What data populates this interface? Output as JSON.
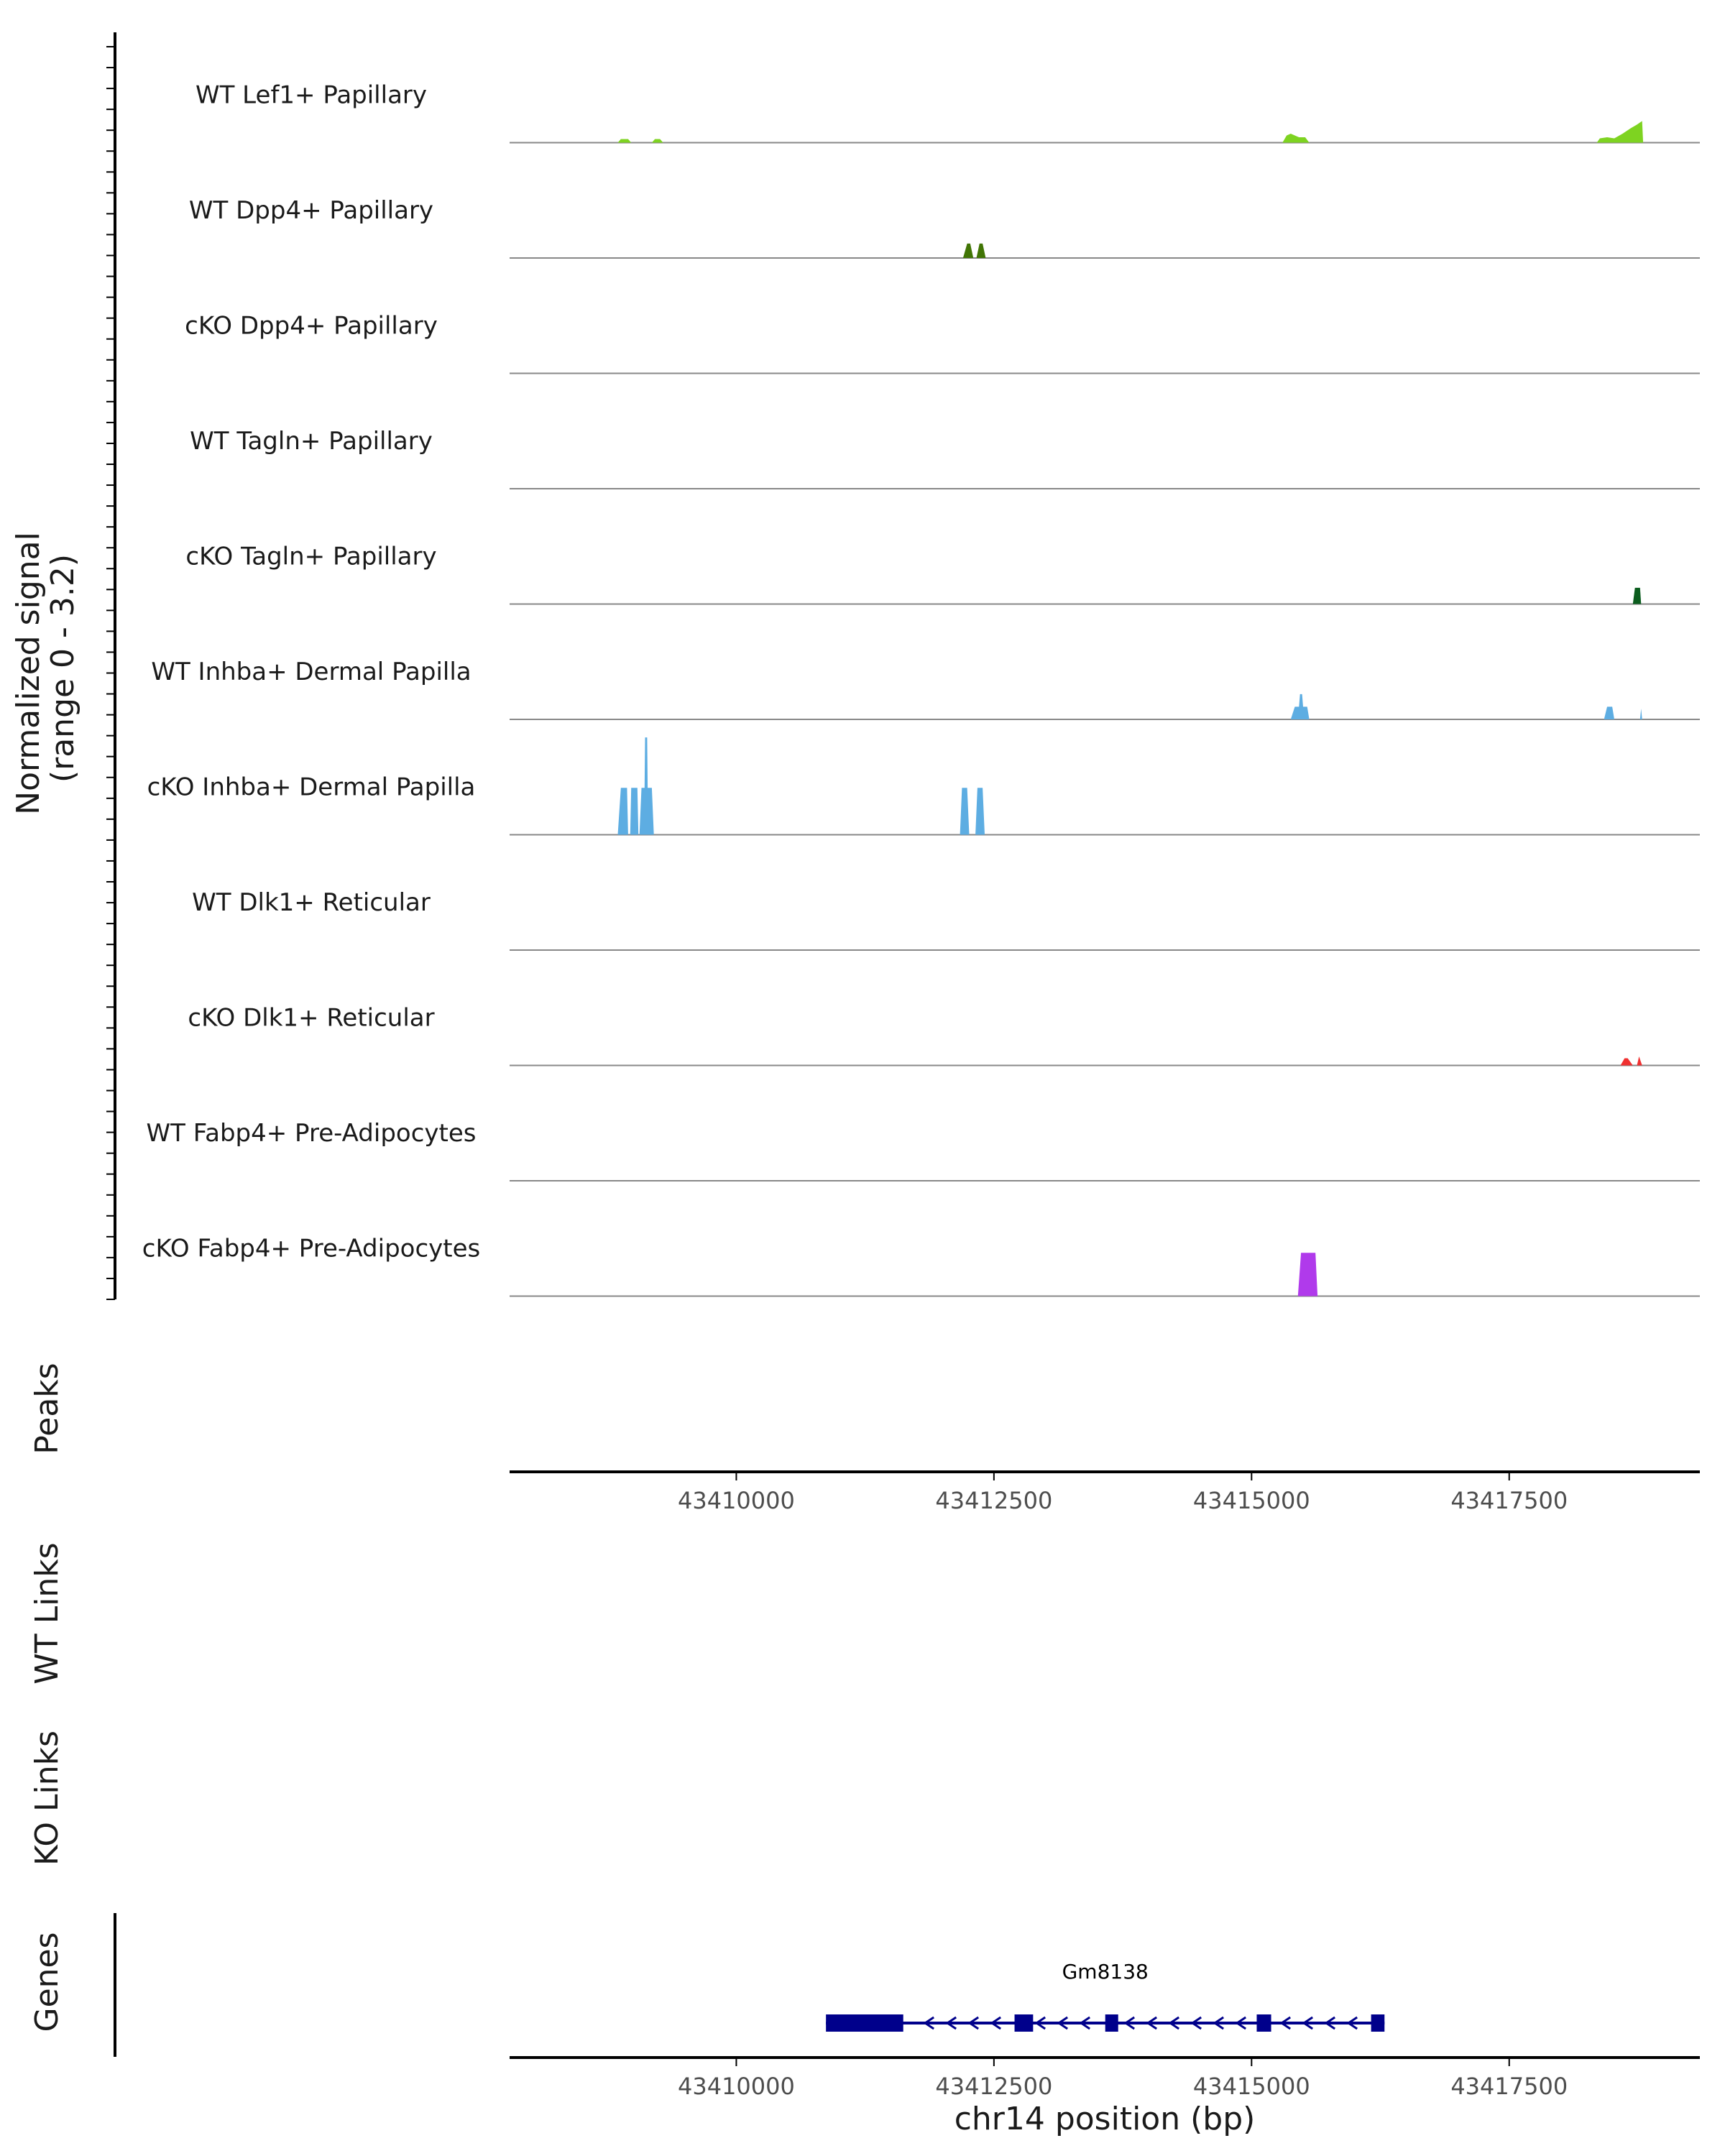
{
  "chart_data": {
    "type": "area",
    "title": "",
    "xlabel": "chr14 position (bp)",
    "ylabel": "Normalized signal\n(range 0 - 3.2)",
    "ylabel_lines": [
      "Normalized signal",
      "(range 0 - 3.2)"
    ],
    "xlim": [
      43407800,
      43419350
    ],
    "ylim": [
      0,
      3.2
    ],
    "x_ticks": [
      43410000,
      43412500,
      43415000,
      43417500
    ],
    "x_tick_labels": [
      "43410000",
      "43412500",
      "43415000",
      "43417500"
    ],
    "series": [
      {
        "name": "WT Lef1+ Papillary",
        "color": "#7ED321",
        "points": [
          [
            43408850,
            0
          ],
          [
            43408880,
            0.1
          ],
          [
            43408950,
            0.1
          ],
          [
            43408980,
            0
          ],
          [
            43409180,
            0
          ],
          [
            43409210,
            0.1
          ],
          [
            43409260,
            0.1
          ],
          [
            43409290,
            0
          ],
          [
            43415300,
            0
          ],
          [
            43415340,
            0.2
          ],
          [
            43415380,
            0.25
          ],
          [
            43415420,
            0.2
          ],
          [
            43415460,
            0.15
          ],
          [
            43415520,
            0.15
          ],
          [
            43415560,
            0
          ],
          [
            43418350,
            0
          ],
          [
            43418380,
            0.12
          ],
          [
            43418450,
            0.15
          ],
          [
            43418520,
            0.12
          ],
          [
            43418600,
            0.25
          ],
          [
            43418680,
            0.4
          ],
          [
            43418740,
            0.5
          ],
          [
            43418790,
            0.6
          ],
          [
            43418800,
            0
          ]
        ]
      },
      {
        "name": "WT Dpp4+ Papillary",
        "color": "#417505",
        "points": [
          [
            43412200,
            0
          ],
          [
            43412240,
            0.4
          ],
          [
            43412270,
            0.4
          ],
          [
            43412300,
            0
          ],
          [
            43412330,
            0
          ],
          [
            43412360,
            0.4
          ],
          [
            43412390,
            0.4
          ],
          [
            43412420,
            0
          ]
        ]
      },
      {
        "name": "cKO Dpp4+ Papillary",
        "color": "#2E7D32",
        "points": []
      },
      {
        "name": "WT Tagln+ Papillary",
        "color": "#1B5E20",
        "points": []
      },
      {
        "name": "cKO Tagln+ Papillary",
        "color": "#0B5D1E",
        "points": [
          [
            43418700,
            0
          ],
          [
            43418720,
            0.45
          ],
          [
            43418770,
            0.45
          ],
          [
            43418780,
            0
          ]
        ]
      },
      {
        "name": "WT Inhba+ Dermal Papilla",
        "color": "#5DADE2",
        "points": [
          [
            43415380,
            0
          ],
          [
            43415420,
            0.35
          ],
          [
            43415460,
            0.35
          ],
          [
            43415470,
            0.7
          ],
          [
            43415490,
            0.7
          ],
          [
            43415500,
            0.35
          ],
          [
            43415540,
            0.35
          ],
          [
            43415560,
            0
          ],
          [
            43418420,
            0
          ],
          [
            43418450,
            0.35
          ],
          [
            43418500,
            0.35
          ],
          [
            43418520,
            0
          ],
          [
            43418770,
            0
          ],
          [
            43418780,
            0.3
          ],
          [
            43418790,
            0
          ]
        ]
      },
      {
        "name": "cKO Inhba+ Dermal Papilla",
        "color": "#5DADE2",
        "points": [
          [
            43408850,
            0
          ],
          [
            43408880,
            1.3
          ],
          [
            43408940,
            1.3
          ],
          [
            43408950,
            0
          ],
          [
            43408970,
            0
          ],
          [
            43408980,
            1.3
          ],
          [
            43409040,
            1.3
          ],
          [
            43409050,
            0
          ],
          [
            43409060,
            0
          ],
          [
            43409080,
            1.3
          ],
          [
            43409110,
            1.3
          ],
          [
            43409115,
            2.7
          ],
          [
            43409135,
            2.7
          ],
          [
            43409140,
            1.3
          ],
          [
            43409180,
            1.3
          ],
          [
            43409200,
            0
          ],
          [
            43412170,
            0
          ],
          [
            43412190,
            1.3
          ],
          [
            43412240,
            1.3
          ],
          [
            43412260,
            0
          ],
          [
            43412320,
            0
          ],
          [
            43412340,
            1.3
          ],
          [
            43412390,
            1.3
          ],
          [
            43412410,
            0
          ]
        ]
      },
      {
        "name": "WT Dlk1+ Reticular",
        "color": "#E74C3C",
        "points": []
      },
      {
        "name": "cKO Dlk1+ Reticular",
        "color": "#F03030",
        "points": [
          [
            43418580,
            0
          ],
          [
            43418620,
            0.2
          ],
          [
            43418650,
            0.2
          ],
          [
            43418700,
            0
          ],
          [
            43418740,
            0
          ],
          [
            43418760,
            0.25
          ],
          [
            43418790,
            0
          ]
        ]
      },
      {
        "name": "WT Fabp4+ Pre-Adipocytes",
        "color": "#B03AEB",
        "points": []
      },
      {
        "name": "cKO Fabp4+ Pre-Adipocytes",
        "color": "#B03AEB",
        "points": [
          [
            43415450,
            0
          ],
          [
            43415480,
            1.2
          ],
          [
            43415620,
            1.2
          ],
          [
            43415640,
            0
          ]
        ]
      }
    ],
    "side_panels": [
      {
        "label": "Peaks"
      },
      {
        "label": "WT Links"
      },
      {
        "label": "KO Links"
      },
      {
        "label": "Genes"
      }
    ],
    "genes": [
      {
        "name": "Gm8138",
        "strand": "-",
        "start": 43410870,
        "end": 43416290,
        "exons": [
          [
            43410870,
            43411620
          ],
          [
            43412700,
            43412880
          ],
          [
            43413580,
            43413700
          ],
          [
            43415050,
            43415190
          ],
          [
            43416160,
            43416290
          ]
        ]
      }
    ],
    "colors": {
      "axis": "#000000",
      "baseline": "#888888",
      "gene": "#00008B"
    }
  }
}
